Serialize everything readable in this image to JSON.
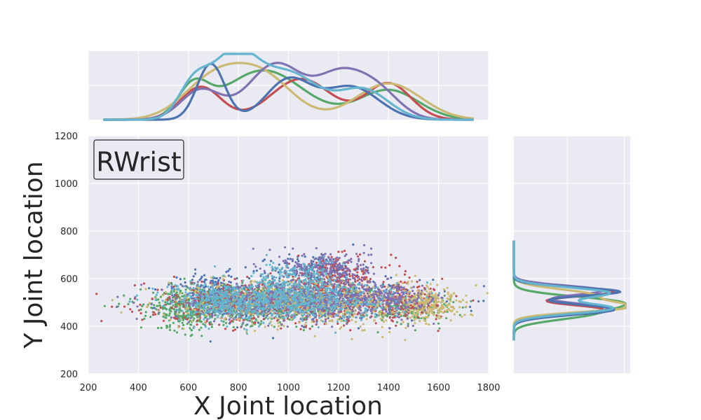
{
  "chart_data": {
    "type": "scatter",
    "title": "",
    "annotation": "RWrist",
    "xlabel": "X Joint location",
    "ylabel": "Y Joint location",
    "xlim": [
      200,
      1800
    ],
    "ylim": [
      200,
      1200
    ],
    "xticks": [
      200,
      400,
      600,
      800,
      1000,
      1200,
      1400,
      1600,
      1800
    ],
    "yticks": [
      200,
      400,
      600,
      800,
      1000,
      1200
    ],
    "grid": true,
    "series": [
      {
        "color": "#4c72b0",
        "clusters": [
          {
            "cx": 1060,
            "cy": 512,
            "sx": 240,
            "sy": 42,
            "n": 160
          },
          {
            "cx": 700,
            "cy": 530,
            "sx": 70,
            "sy": 45,
            "n": 60
          },
          {
            "cx": 1110,
            "cy": 640,
            "sx": 90,
            "sy": 30,
            "n": 40
          }
        ]
      },
      {
        "color": "#55a868",
        "clusters": [
          {
            "cx": 880,
            "cy": 490,
            "sx": 230,
            "sy": 40,
            "n": 150
          },
          {
            "cx": 580,
            "cy": 470,
            "sx": 50,
            "sy": 45,
            "n": 50
          },
          {
            "cx": 1500,
            "cy": 470,
            "sx": 80,
            "sy": 30,
            "n": 40
          }
        ]
      },
      {
        "color": "#c44e52",
        "clusters": [
          {
            "cx": 950,
            "cy": 500,
            "sx": 260,
            "sy": 45,
            "n": 160
          },
          {
            "cx": 1180,
            "cy": 610,
            "sx": 120,
            "sy": 40,
            "n": 50
          },
          {
            "cx": 1450,
            "cy": 500,
            "sx": 90,
            "sy": 35,
            "n": 40
          }
        ]
      },
      {
        "color": "#ccb974",
        "clusters": [
          {
            "cx": 1200,
            "cy": 500,
            "sx": 260,
            "sy": 45,
            "n": 160
          },
          {
            "cx": 1560,
            "cy": 490,
            "sx": 50,
            "sy": 30,
            "n": 40
          },
          {
            "cx": 850,
            "cy": 500,
            "sx": 180,
            "sy": 40,
            "n": 60
          }
        ]
      },
      {
        "color": "#8172b2",
        "clusters": [
          {
            "cx": 1020,
            "cy": 510,
            "sx": 240,
            "sy": 40,
            "n": 170
          },
          {
            "cx": 1150,
            "cy": 650,
            "sx": 90,
            "sy": 35,
            "n": 50
          },
          {
            "cx": 1400,
            "cy": 520,
            "sx": 80,
            "sy": 35,
            "n": 40
          }
        ]
      },
      {
        "color": "#64b5cd",
        "clusters": [
          {
            "cx": 980,
            "cy": 510,
            "sx": 210,
            "sy": 40,
            "n": 180
          },
          {
            "cx": 1030,
            "cy": 610,
            "sx": 80,
            "sy": 35,
            "n": 40
          },
          {
            "cx": 740,
            "cy": 500,
            "sx": 80,
            "sy": 40,
            "n": 50
          }
        ]
      }
    ],
    "marginal_x": [
      {
        "color": "#55a868",
        "peaks": [
          [
            620,
            60,
            0.45
          ],
          [
            900,
            160,
            0.75
          ],
          [
            1400,
            120,
            0.45
          ]
        ]
      },
      {
        "color": "#c44e52",
        "peaks": [
          [
            650,
            80,
            0.5
          ],
          [
            1050,
            120,
            0.62
          ],
          [
            1400,
            90,
            0.55
          ]
        ]
      },
      {
        "color": "#ccb974",
        "peaks": [
          [
            700,
            120,
            0.6
          ],
          [
            900,
            120,
            0.62
          ],
          [
            1400,
            130,
            0.55
          ]
        ]
      },
      {
        "color": "#8172b2",
        "peaks": [
          [
            650,
            80,
            0.45
          ],
          [
            950,
            110,
            0.85
          ],
          [
            1200,
            90,
            0.6
          ],
          [
            1350,
            90,
            0.45
          ]
        ]
      },
      {
        "color": "#4c72b0",
        "peaks": [
          [
            690,
            55,
            0.85
          ],
          [
            1000,
            90,
            0.6
          ],
          [
            1250,
            110,
            0.5
          ]
        ]
      },
      {
        "color": "#64b5cd",
        "peaks": [
          [
            620,
            60,
            0.5
          ],
          [
            780,
            90,
            0.95
          ],
          [
            1000,
            120,
            0.7
          ],
          [
            1300,
            100,
            0.45
          ]
        ]
      }
    ],
    "marginal_y": [
      {
        "color": "#55a868",
        "peaks": [
          [
            450,
            25,
            0.6
          ],
          [
            500,
            25,
            0.9
          ]
        ]
      },
      {
        "color": "#c44e52",
        "peaks": [
          [
            470,
            20,
            0.8
          ],
          [
            545,
            20,
            0.9
          ]
        ]
      },
      {
        "color": "#8172b2",
        "peaks": [
          [
            475,
            22,
            0.85
          ],
          [
            550,
            20,
            0.8
          ]
        ]
      },
      {
        "color": "#ccb974",
        "peaks": [
          [
            480,
            20,
            0.98
          ],
          [
            530,
            25,
            0.7
          ]
        ]
      },
      {
        "color": "#4c72b0",
        "peaks": [
          [
            470,
            22,
            0.9
          ],
          [
            545,
            18,
            0.95
          ]
        ]
      },
      {
        "color": "#64b5cd",
        "peaks": [
          [
            475,
            22,
            0.88
          ],
          [
            540,
            22,
            0.85
          ]
        ]
      }
    ]
  }
}
